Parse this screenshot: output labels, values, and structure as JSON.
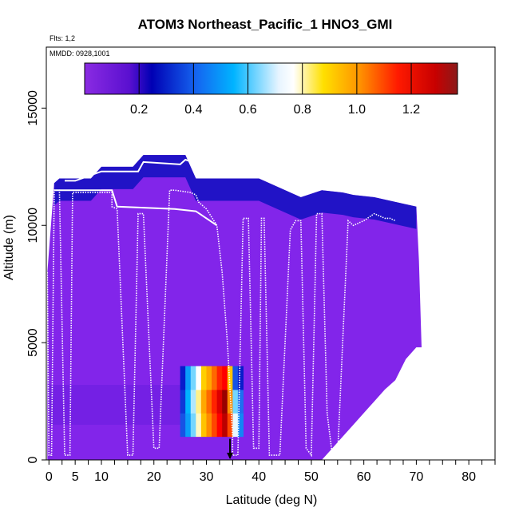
{
  "chart_data": {
    "type": "heatmap",
    "title": "ATOM3 Northeast_Pacific_1 HNO3_GMI",
    "subtitle_flts": "Flts: 1,2",
    "subtitle_mmdd": "MMDD: 0928,1001",
    "xlabel": "Latitude (deg N)",
    "ylabel": "Altitude (m)",
    "xlim": [
      -0.5,
      85
    ],
    "ylim": [
      0,
      17600
    ],
    "x_ticks": [
      0,
      5,
      10,
      20,
      30,
      40,
      50,
      60,
      70,
      80
    ],
    "x_tick_labels": [
      "0",
      "5",
      "10",
      "20",
      "30",
      "40",
      "50",
      "60",
      "70",
      "80"
    ],
    "x_minor_ticks": [
      0,
      2.5,
      5,
      7.5,
      10,
      12.5,
      15,
      17.5,
      20,
      22.5,
      25,
      27.5,
      30,
      32.5,
      35,
      37.5,
      40,
      42.5,
      45,
      47.5,
      50,
      52.5,
      55,
      57.5,
      60,
      62.5,
      65,
      67.5,
      70,
      72.5,
      75,
      77.5,
      80,
      82.5,
      85
    ],
    "y_ticks": [
      0,
      5000,
      10000,
      15000
    ],
    "y_tick_labels": [
      "0",
      "5000",
      "10000",
      "15000"
    ],
    "colorbar": {
      "min": 0,
      "max": 1.37,
      "ticks": [
        0.2,
        0.4,
        0.6,
        0.8,
        1.0,
        1.2
      ],
      "tick_labels": [
        "0.2",
        "0.4",
        "0.6",
        "0.8",
        "1.0",
        "1.2"
      ],
      "colors": [
        "#8a2be2",
        "#0000c8",
        "#1e6ff0",
        "#00b4ff",
        "#ffffff",
        "#ffe000",
        "#ff8c00",
        "#ff0000",
        "#8b0000"
      ]
    },
    "domain_profile": [
      [
        -0.3,
        0,
        8000
      ],
      [
        1,
        0,
        11800
      ],
      [
        2,
        0,
        12000
      ],
      [
        4,
        0,
        12000
      ],
      [
        8,
        0,
        12000
      ],
      [
        10,
        0,
        12500
      ],
      [
        16,
        0,
        12500
      ],
      [
        18,
        0,
        13000
      ],
      [
        26,
        0,
        13000
      ],
      [
        28,
        0,
        12000
      ],
      [
        40,
        0,
        12000
      ],
      [
        48,
        0,
        11200
      ],
      [
        52,
        0,
        11500
      ],
      [
        56,
        0,
        11400
      ],
      [
        58,
        0,
        11300
      ],
      [
        62,
        0,
        11200
      ],
      [
        66,
        0,
        11000
      ],
      [
        70,
        0,
        10800
      ],
      [
        70.5,
        0,
        8500
      ],
      [
        71,
        0,
        4800
      ],
      [
        70,
        0,
        4800
      ],
      [
        68,
        0,
        4300
      ],
      [
        66,
        0,
        3400
      ],
      [
        64,
        0,
        3000
      ],
      [
        62,
        0,
        2500
      ],
      [
        60,
        0,
        2000
      ],
      [
        58,
        0,
        1500
      ],
      [
        56,
        0,
        1000
      ],
      [
        54,
        0,
        500
      ],
      [
        52,
        0,
        0
      ]
    ],
    "plume": {
      "x_range": [
        25,
        38
      ],
      "z_range": [
        400,
        4000
      ],
      "cells": [
        {
          "x": 25,
          "z": 1000,
          "v": 0.3
        },
        {
          "x": 25,
          "z": 2000,
          "v": 0.25
        },
        {
          "x": 25,
          "z": 3000,
          "v": 0.2
        },
        {
          "x": 26,
          "z": 1000,
          "v": 0.45
        },
        {
          "x": 26,
          "z": 2000,
          "v": 0.5
        },
        {
          "x": 26,
          "z": 3000,
          "v": 0.45
        },
        {
          "x": 27,
          "z": 1000,
          "v": 0.6
        },
        {
          "x": 27,
          "z": 2000,
          "v": 0.65
        },
        {
          "x": 27,
          "z": 3000,
          "v": 0.6
        },
        {
          "x": 28,
          "z": 1000,
          "v": 0.75
        },
        {
          "x": 28,
          "z": 2000,
          "v": 0.78
        },
        {
          "x": 28,
          "z": 3000,
          "v": 0.72
        },
        {
          "x": 29,
          "z": 1000,
          "v": 0.9
        },
        {
          "x": 29,
          "z": 2000,
          "v": 0.95
        },
        {
          "x": 29,
          "z": 3000,
          "v": 0.88
        },
        {
          "x": 30,
          "z": 1000,
          "v": 1.0
        },
        {
          "x": 30,
          "z": 2000,
          "v": 1.05
        },
        {
          "x": 30,
          "z": 3000,
          "v": 0.95
        },
        {
          "x": 31,
          "z": 1000,
          "v": 1.1
        },
        {
          "x": 31,
          "z": 2000,
          "v": 1.15
        },
        {
          "x": 31,
          "z": 3000,
          "v": 1.05
        },
        {
          "x": 32,
          "z": 1000,
          "v": 1.2
        },
        {
          "x": 32,
          "z": 2000,
          "v": 1.25
        },
        {
          "x": 32,
          "z": 3000,
          "v": 1.15
        },
        {
          "x": 33,
          "z": 1000,
          "v": 1.3
        },
        {
          "x": 33,
          "z": 2000,
          "v": 1.35
        },
        {
          "x": 33,
          "z": 3000,
          "v": 1.2
        },
        {
          "x": 34,
          "z": 1000,
          "v": 1.1
        },
        {
          "x": 34,
          "z": 2000,
          "v": 1.0
        },
        {
          "x": 34,
          "z": 3000,
          "v": 0.9
        },
        {
          "x": 35,
          "z": 1000,
          "v": 0.7
        },
        {
          "x": 35,
          "z": 2000,
          "v": 0.6
        },
        {
          "x": 35,
          "z": 3000,
          "v": 0.3
        },
        {
          "x": 36,
          "z": 1000,
          "v": 0.4
        },
        {
          "x": 36,
          "z": 2000,
          "v": 0.35
        },
        {
          "x": 36,
          "z": 3000,
          "v": 0.2
        }
      ]
    },
    "flight_track": [
      [
        -0.3,
        8000
      ],
      [
        0,
        200
      ],
      [
        0.5,
        200
      ],
      [
        1,
        11500
      ],
      [
        2,
        11500
      ],
      [
        3,
        200
      ],
      [
        4,
        200
      ],
      [
        4.5,
        11400
      ],
      [
        12,
        11400
      ],
      [
        12,
        10800
      ],
      [
        13,
        10700
      ],
      [
        15,
        200
      ],
      [
        16,
        200
      ],
      [
        17,
        10500
      ],
      [
        18,
        10500
      ],
      [
        20,
        500
      ],
      [
        21,
        500
      ],
      [
        23,
        11500
      ],
      [
        24,
        11500
      ],
      [
        27,
        11400
      ],
      [
        28,
        11300
      ],
      [
        28.5,
        11000
      ],
      [
        30,
        10700
      ],
      [
        32,
        10000
      ],
      [
        33,
        8000
      ],
      [
        34,
        5000
      ],
      [
        34.5,
        3000
      ],
      [
        35,
        1000
      ],
      [
        35,
        200
      ],
      [
        36,
        200
      ],
      [
        37,
        10300
      ],
      [
        38,
        10300
      ],
      [
        39,
        500
      ],
      [
        40,
        500
      ],
      [
        40.5,
        10300
      ],
      [
        41,
        10300
      ],
      [
        42,
        200
      ],
      [
        44,
        200
      ],
      [
        46,
        9800
      ],
      [
        47,
        10200
      ],
      [
        48,
        10200
      ],
      [
        49,
        500
      ],
      [
        50,
        200
      ],
      [
        51,
        10500
      ],
      [
        52,
        10500
      ],
      [
        53,
        2000
      ],
      [
        54,
        200
      ],
      [
        55,
        200
      ],
      [
        57,
        10200
      ],
      [
        58,
        10000
      ],
      [
        60,
        10200
      ],
      [
        62,
        10500
      ],
      [
        63,
        10400
      ],
      [
        64,
        10300
      ],
      [
        65,
        10300
      ],
      [
        66,
        10200
      ]
    ],
    "flight_track_b": [
      [
        1,
        11500
      ],
      [
        8,
        11500
      ],
      [
        12,
        11500
      ],
      [
        13,
        10800
      ],
      [
        24,
        10700
      ],
      [
        28,
        10600
      ],
      [
        30,
        10300
      ],
      [
        32,
        10000
      ]
    ],
    "flight_track_c": [
      [
        3,
        11900
      ],
      [
        5,
        11900
      ],
      [
        10,
        12300
      ],
      [
        17,
        12300
      ],
      [
        18,
        12700
      ],
      [
        25,
        12600
      ],
      [
        26,
        12800
      ],
      [
        30,
        12500
      ],
      [
        33,
        12300
      ]
    ],
    "marker_x": 34.5
  }
}
